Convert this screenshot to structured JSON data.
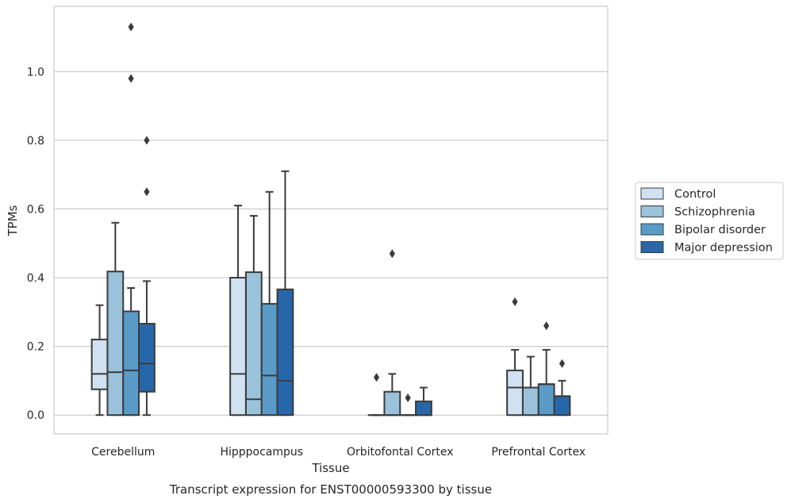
{
  "chart_data": {
    "type": "box",
    "title": "",
    "caption": "Transcript expression for ENST00000593300 by tissue",
    "xlabel": "Tissue",
    "ylabel": "TPMs",
    "ylim": [
      -0.055,
      1.19
    ],
    "yticks": [
      0.0,
      0.2,
      0.4,
      0.6,
      0.8,
      1.0
    ],
    "ytick_labels": [
      "0.0",
      "0.2",
      "0.4",
      "0.6",
      "0.8",
      "1.0"
    ],
    "grid": true,
    "legend_position": "right",
    "categories": [
      "Cerebellum",
      "Hipppocampus",
      "Orbitofontal Cortex",
      "Prefrontal Cortex"
    ],
    "series": [
      {
        "name": "Control",
        "color": "#d0e1f2",
        "boxes": [
          {
            "whislo": 0.0,
            "q1": 0.075,
            "med": 0.12,
            "q3": 0.22,
            "whishi": 0.32,
            "fliers": []
          },
          {
            "whislo": 0.0,
            "q1": 0.0,
            "med": 0.12,
            "q3": 0.4,
            "whishi": 0.61,
            "fliers": []
          },
          {
            "whislo": 0.0,
            "q1": 0.0,
            "med": 0.0,
            "q3": 0.0,
            "whishi": 0.0,
            "fliers": [
              0.11
            ]
          },
          {
            "whislo": 0.0,
            "q1": 0.0,
            "med": 0.08,
            "q3": 0.13,
            "whishi": 0.19,
            "fliers": [
              0.33
            ]
          }
        ]
      },
      {
        "name": "Schizophrenia",
        "color": "#9ac2db",
        "boxes": [
          {
            "whislo": 0.0,
            "q1": 0.0,
            "med": 0.125,
            "q3": 0.418,
            "whishi": 0.56,
            "fliers": []
          },
          {
            "whislo": 0.0,
            "q1": 0.0,
            "med": 0.046,
            "q3": 0.416,
            "whishi": 0.58,
            "fliers": []
          },
          {
            "whislo": 0.0,
            "q1": 0.0,
            "med": 0.0,
            "q3": 0.068,
            "whishi": 0.12,
            "fliers": [
              0.47
            ]
          },
          {
            "whislo": 0.0,
            "q1": 0.0,
            "med": 0.08,
            "q3": 0.08,
            "whishi": 0.17,
            "fliers": []
          }
        ]
      },
      {
        "name": "Bipolar disorder",
        "color": "#5a9bc7",
        "boxes": [
          {
            "whislo": 0.0,
            "q1": 0.0,
            "med": 0.13,
            "q3": 0.302,
            "whishi": 0.37,
            "fliers": [
              0.98,
              1.13
            ]
          },
          {
            "whislo": 0.0,
            "q1": 0.0,
            "med": 0.115,
            "q3": 0.324,
            "whishi": 0.65,
            "fliers": []
          },
          {
            "whislo": 0.0,
            "q1": 0.0,
            "med": 0.0,
            "q3": 0.0,
            "whishi": 0.0,
            "fliers": [
              0.05
            ]
          },
          {
            "whislo": 0.0,
            "q1": 0.0,
            "med": 0.09,
            "q3": 0.09,
            "whishi": 0.19,
            "fliers": [
              0.26
            ]
          }
        ]
      },
      {
        "name": "Major depression",
        "color": "#2767a9",
        "boxes": [
          {
            "whislo": 0.0,
            "q1": 0.068,
            "med": 0.15,
            "q3": 0.266,
            "whishi": 0.39,
            "fliers": [
              0.65,
              0.8
            ]
          },
          {
            "whislo": 0.0,
            "q1": 0.0,
            "med": 0.1,
            "q3": 0.366,
            "whishi": 0.71,
            "fliers": []
          },
          {
            "whislo": 0.0,
            "q1": 0.0,
            "med": 0.0,
            "q3": 0.04,
            "whishi": 0.08,
            "fliers": []
          },
          {
            "whislo": 0.0,
            "q1": 0.0,
            "med": 0.055,
            "q3": 0.055,
            "whishi": 0.1,
            "fliers": [
              0.15
            ]
          }
        ]
      }
    ]
  }
}
